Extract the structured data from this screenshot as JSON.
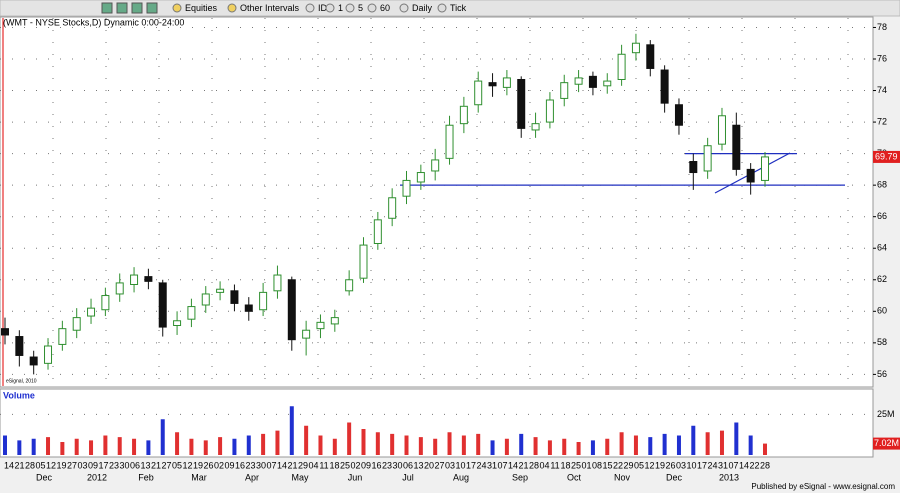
{
  "toolbar": {
    "items": [
      "Equities",
      "Other Intervals",
      "IDC",
      "1",
      "5",
      "60",
      "Daily",
      "Tick"
    ]
  },
  "footer": "Published by eSignal - www.esignal.com",
  "chart_data": {
    "type": "candlestick",
    "title": "(WMT - NYSE Stocks,D) Dynamic 0:00-24:00",
    "watermark": "eSignal, 2010",
    "up_color": "#2f8f2f",
    "down_color": "#111111",
    "ylim": [
      55.2,
      78.6
    ],
    "yticks": [
      56,
      58,
      60,
      62,
      64,
      66,
      68,
      70,
      72,
      74,
      76,
      78
    ],
    "grid": true,
    "last_value": 69.79,
    "levels": [
      {
        "value": 68,
        "color": "#1f2fbf"
      },
      {
        "value": 70,
        "color": "#1f2fbf"
      }
    ],
    "open": [
      58.9,
      58.4,
      57.1,
      56.7,
      57.9,
      58.8,
      59.7,
      60.1,
      61.1,
      61.7,
      62.2,
      61.8,
      59.1,
      59.5,
      60.4,
      61.2,
      61.3,
      60.4,
      60.1,
      61.3,
      62.0,
      58.3,
      58.9,
      59.2,
      61.3,
      62.1,
      64.3,
      65.9,
      67.3,
      68.2,
      68.9,
      69.7,
      71.9,
      73.1,
      74.5,
      74.2,
      74.7,
      71.5,
      72.0,
      73.5,
      74.4,
      74.9,
      74.3,
      74.7,
      76.4,
      76.9,
      75.3,
      73.1,
      69.5,
      68.9,
      70.6,
      71.8,
      69.0,
      68.3
    ],
    "high": [
      59.6,
      58.8,
      57.5,
      58.3,
      59.4,
      60.2,
      60.8,
      61.5,
      62.4,
      62.8,
      62.7,
      62.0,
      60.0,
      60.8,
      61.6,
      61.9,
      61.7,
      60.9,
      61.8,
      62.9,
      62.2,
      59.4,
      59.8,
      60.1,
      62.6,
      64.7,
      66.3,
      67.8,
      68.9,
      69.3,
      70.3,
      72.4,
      73.6,
      75.2,
      75.1,
      75.3,
      74.9,
      72.6,
      73.9,
      75.0,
      75.3,
      75.2,
      75.1,
      76.9,
      77.6,
      77.2,
      75.6,
      73.5,
      70.0,
      71.0,
      72.9,
      72.6,
      69.4,
      70.1
    ],
    "low": [
      57.9,
      56.5,
      56.0,
      56.3,
      57.5,
      58.3,
      59.2,
      59.7,
      60.6,
      61.2,
      61.4,
      58.4,
      58.5,
      59.0,
      59.9,
      60.7,
      60.0,
      59.4,
      59.7,
      60.8,
      57.5,
      57.2,
      58.3,
      58.7,
      61.0,
      61.8,
      63.9,
      65.4,
      66.8,
      67.7,
      68.3,
      69.3,
      71.3,
      72.6,
      73.6,
      73.7,
      71.0,
      71.0,
      71.6,
      73.0,
      73.9,
      73.7,
      73.8,
      74.3,
      75.9,
      74.9,
      72.6,
      71.2,
      67.7,
      68.4,
      70.2,
      68.6,
      67.4,
      67.9
    ],
    "close": [
      58.5,
      57.2,
      56.6,
      57.8,
      58.9,
      59.6,
      60.2,
      61.0,
      61.8,
      62.3,
      61.9,
      59.0,
      59.4,
      60.3,
      61.1,
      61.4,
      60.5,
      60.0,
      61.2,
      62.3,
      58.2,
      58.8,
      59.3,
      59.6,
      62.0,
      64.2,
      65.8,
      67.2,
      68.3,
      68.8,
      69.6,
      71.8,
      73.0,
      74.6,
      74.3,
      74.8,
      71.6,
      71.9,
      73.4,
      74.5,
      74.8,
      74.2,
      74.6,
      76.3,
      77.0,
      75.4,
      73.2,
      71.8,
      68.8,
      70.5,
      72.4,
      69.0,
      68.2,
      69.79
    ],
    "volume": {
      "name": "Volume",
      "up_color": "#e03030",
      "down_color": "#2030d0",
      "ylim": [
        0,
        40
      ],
      "yticks": [
        {
          "value": 25,
          "label": "25M"
        }
      ],
      "last_value": {
        "value": 7.02,
        "label": "7.02M"
      },
      "values": [
        12,
        9,
        10,
        11,
        8,
        10,
        9,
        12,
        11,
        10,
        9,
        22,
        14,
        10,
        9,
        11,
        10,
        12,
        13,
        15,
        30,
        18,
        12,
        10,
        20,
        16,
        14,
        13,
        12,
        11,
        10,
        14,
        12,
        13,
        9,
        10,
        13,
        11,
        9,
        10,
        8,
        9,
        10,
        14,
        12,
        11,
        13,
        12,
        18,
        14,
        15,
        20,
        12,
        7.02
      ]
    },
    "day_labels": [
      "14",
      "21",
      "28",
      "05",
      "12",
      "19",
      "27",
      "03",
      "09",
      "17",
      "23",
      "30",
      "06",
      "13",
      "21",
      "27",
      "05",
      "12",
      "19",
      "26",
      "02",
      "09",
      "16",
      "23",
      "30",
      "07",
      "14",
      "21",
      "29",
      "04",
      "11",
      "18",
      "25",
      "02",
      "09",
      "16",
      "23",
      "30",
      "06",
      "13",
      "20",
      "27",
      "03",
      "10",
      "17",
      "24",
      "31",
      "07",
      "14",
      "21",
      "28",
      "04",
      "11",
      "18",
      "25",
      "01",
      "08",
      "15",
      "22",
      "29",
      "05",
      "12",
      "19",
      "26",
      "03",
      "10",
      "17",
      "24",
      "31",
      "07",
      "14",
      "22",
      "28"
    ],
    "month_labels": [
      "Dec",
      "2012",
      "Feb",
      "Mar",
      "Apr",
      "May",
      "Jun",
      "Jul",
      "Aug",
      "Sep",
      "Oct",
      "Nov",
      "Dec",
      "2013"
    ]
  }
}
